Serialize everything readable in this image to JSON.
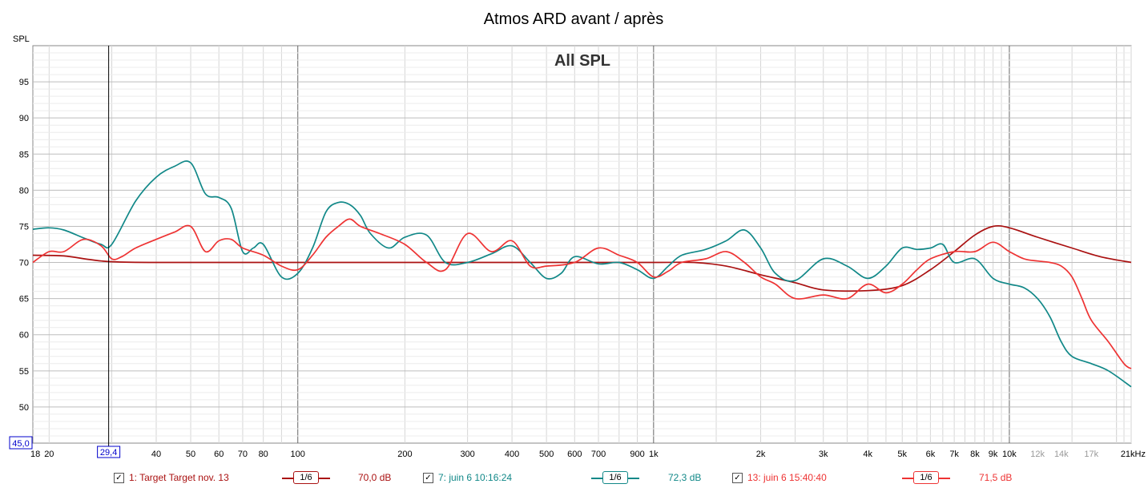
{
  "chart_data": {
    "type": "line",
    "title": "Atmos ARD avant / après",
    "annotation": "All SPL",
    "ylabel": "SPL",
    "xunit": "kHz",
    "xscale": "log",
    "xlim": [
      18,
      22000
    ],
    "ylim": [
      45,
      100
    ],
    "y_floor_label": "45,0",
    "cursor": {
      "x": 29.4,
      "label": "29,4"
    },
    "grid": true,
    "y_ticks": [
      {
        "value": 50,
        "label": "50"
      },
      {
        "value": 55,
        "label": "55"
      },
      {
        "value": 60,
        "label": "60"
      },
      {
        "value": 65,
        "label": "65"
      },
      {
        "value": 70,
        "label": "70"
      },
      {
        "value": 75,
        "label": "75"
      },
      {
        "value": 80,
        "label": "80"
      },
      {
        "value": 85,
        "label": "85"
      },
      {
        "value": 90,
        "label": "90"
      },
      {
        "value": 95,
        "label": "95"
      }
    ],
    "x_ticks": [
      {
        "value": 18,
        "label": "18",
        "faded": false
      },
      {
        "value": 20,
        "label": "20",
        "faded": false
      },
      {
        "value": 40,
        "label": "40",
        "faded": false
      },
      {
        "value": 50,
        "label": "50",
        "faded": false
      },
      {
        "value": 60,
        "label": "60",
        "faded": false
      },
      {
        "value": 70,
        "label": "70",
        "faded": false
      },
      {
        "value": 80,
        "label": "80",
        "faded": false
      },
      {
        "value": 100,
        "label": "100",
        "faded": false
      },
      {
        "value": 200,
        "label": "200",
        "faded": false
      },
      {
        "value": 300,
        "label": "300",
        "faded": false
      },
      {
        "value": 400,
        "label": "400",
        "faded": false
      },
      {
        "value": 500,
        "label": "500",
        "faded": false
      },
      {
        "value": 600,
        "label": "600",
        "faded": false
      },
      {
        "value": 700,
        "label": "700",
        "faded": false
      },
      {
        "value": 900,
        "label": "900",
        "faded": false
      },
      {
        "value": 1000,
        "label": "1k",
        "faded": false
      },
      {
        "value": 2000,
        "label": "2k",
        "faded": false
      },
      {
        "value": 3000,
        "label": "3k",
        "faded": false
      },
      {
        "value": 4000,
        "label": "4k",
        "faded": false
      },
      {
        "value": 5000,
        "label": "5k",
        "faded": false
      },
      {
        "value": 6000,
        "label": "6k",
        "faded": false
      },
      {
        "value": 7000,
        "label": "7k",
        "faded": false
      },
      {
        "value": 8000,
        "label": "8k",
        "faded": false
      },
      {
        "value": 9000,
        "label": "9k",
        "faded": false
      },
      {
        "value": 10000,
        "label": "10k",
        "faded": false
      },
      {
        "value": 12000,
        "label": "12k",
        "faded": true
      },
      {
        "value": 14000,
        "label": "14k",
        "faded": true
      },
      {
        "value": 17000,
        "label": "17k",
        "faded": true
      },
      {
        "value": 21000,
        "label": "21kHz",
        "faded": false
      }
    ],
    "series": [
      {
        "name": "1: Target Target nov. 13",
        "color": "#aa1111",
        "smoothing": "1/6",
        "level": "70,0 dB",
        "x": [
          18,
          22,
          26,
          30,
          40,
          60,
          100,
          200,
          500,
          1000,
          1300,
          1600,
          2000,
          2500,
          3000,
          4000,
          5000,
          6000,
          7000,
          8000,
          9000,
          10000,
          12000,
          15000,
          18000,
          22000
        ],
        "y": [
          71.0,
          70.9,
          70.4,
          70.1,
          70.0,
          70.0,
          70.0,
          70.0,
          70.0,
          70.0,
          70.0,
          69.5,
          68.3,
          67.2,
          66.2,
          66.1,
          66.8,
          69.0,
          71.5,
          73.8,
          75.0,
          74.8,
          73.5,
          72.0,
          70.8,
          70.0
        ]
      },
      {
        "name": "7: juin 6 10:16:24",
        "color": "#118888",
        "smoothing": "1/6",
        "level": "72,3 dB",
        "x": [
          18,
          20,
          22,
          25,
          28,
          30,
          35,
          40,
          45,
          50,
          55,
          60,
          65,
          70,
          75,
          80,
          90,
          100,
          110,
          120,
          130,
          140,
          150,
          160,
          180,
          200,
          230,
          260,
          300,
          350,
          400,
          450,
          500,
          550,
          600,
          700,
          800,
          900,
          1000,
          1100,
          1200,
          1400,
          1600,
          1800,
          2000,
          2200,
          2500,
          3000,
          3500,
          4000,
          4500,
          5000,
          5500,
          6000,
          6500,
          7000,
          8000,
          9000,
          10000,
          11000,
          12000,
          13000,
          14000,
          15000,
          17000,
          19000,
          22000
        ],
        "y": [
          74.6,
          74.8,
          74.5,
          73.4,
          72.5,
          72.5,
          78.5,
          81.8,
          83.3,
          83.8,
          79.5,
          79.0,
          77.5,
          71.5,
          72.0,
          72.5,
          68.0,
          68.5,
          72.0,
          77.0,
          78.3,
          78.0,
          76.5,
          74.0,
          72.0,
          73.5,
          73.8,
          70.0,
          70.0,
          71.2,
          72.3,
          70.0,
          67.8,
          68.5,
          70.8,
          69.8,
          70.0,
          69.0,
          67.8,
          69.5,
          71.0,
          71.8,
          73.0,
          74.5,
          72.0,
          68.5,
          67.5,
          70.5,
          69.5,
          67.8,
          69.5,
          72.0,
          71.8,
          72.0,
          72.5,
          70.0,
          70.5,
          67.8,
          67.0,
          66.5,
          65.0,
          62.5,
          59.0,
          57.0,
          56.0,
          55.0,
          52.8
        ]
      },
      {
        "name": "13: juin 6 15:40:40",
        "color": "#ee3333",
        "smoothing": "1/6",
        "level": "71,5 dB",
        "x": [
          18,
          20,
          22,
          25,
          28,
          30,
          32,
          35,
          40,
          45,
          50,
          55,
          60,
          65,
          70,
          80,
          90,
          100,
          110,
          120,
          130,
          140,
          150,
          170,
          200,
          230,
          260,
          300,
          350,
          400,
          450,
          500,
          600,
          700,
          800,
          900,
          1000,
          1100,
          1200,
          1400,
          1600,
          1800,
          2000,
          2200,
          2500,
          3000,
          3500,
          4000,
          4500,
          5000,
          5500,
          6000,
          7000,
          8000,
          9000,
          10000,
          11000,
          12000,
          13000,
          14000,
          15000,
          16000,
          17000,
          19000,
          21000,
          22000
        ],
        "y": [
          70.0,
          71.5,
          71.5,
          73.2,
          72.3,
          70.5,
          70.8,
          72.0,
          73.2,
          74.2,
          75.0,
          71.5,
          73.0,
          73.2,
          72.0,
          71.0,
          69.5,
          69.0,
          71.0,
          73.5,
          75.0,
          76.0,
          75.0,
          74.0,
          72.5,
          70.0,
          69.0,
          74.0,
          71.5,
          73.0,
          69.5,
          69.5,
          70.0,
          72.0,
          71.0,
          70.0,
          68.0,
          68.8,
          70.0,
          70.5,
          71.5,
          70.0,
          68.0,
          67.0,
          65.0,
          65.5,
          65.0,
          67.0,
          65.8,
          67.0,
          69.0,
          70.5,
          71.5,
          71.5,
          72.8,
          71.5,
          70.5,
          70.2,
          70.0,
          69.5,
          68.0,
          65.0,
          62.0,
          59.0,
          56.0,
          55.3
        ]
      }
    ]
  }
}
